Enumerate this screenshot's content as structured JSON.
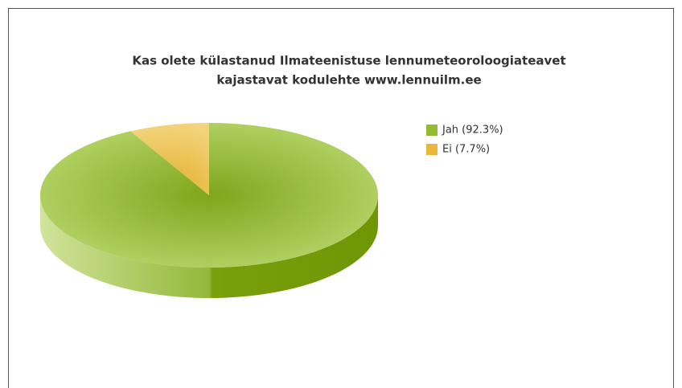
{
  "chart_data": {
    "type": "pie",
    "title": [
      "Kas olete külastanud Ilmateenistuse lennumeteoroloogiateavet",
      "kajastavat kodulehte www.lennuilm.ee"
    ],
    "categories": [
      "Jah (92.3%)",
      "Ei (7.7%)"
    ],
    "values": [
      92.3,
      7.7
    ],
    "colors": [
      "#93bb33",
      "#e8b83c"
    ],
    "legend": "right"
  }
}
